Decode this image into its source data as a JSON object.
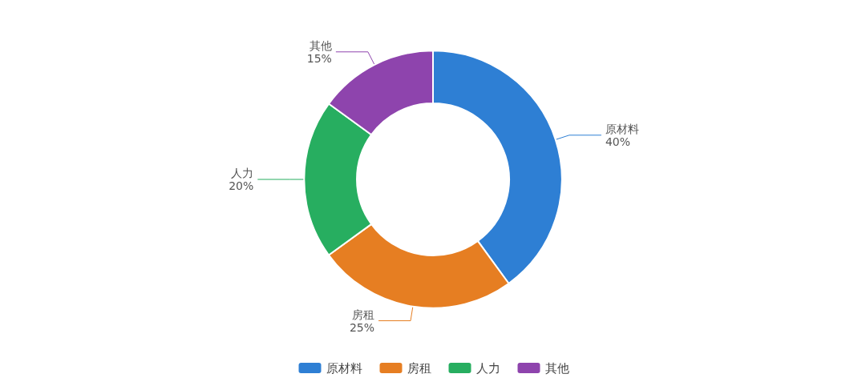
{
  "chart_data": {
    "type": "donut",
    "categories": [
      "原材料",
      "房租",
      "人力",
      "其他"
    ],
    "values": [
      40,
      25,
      20,
      15
    ],
    "colors": [
      "#2e7fd4",
      "#e67e22",
      "#27ae60",
      "#8e44ad"
    ],
    "value_labels": [
      "40%",
      "25%",
      "20%",
      "15%"
    ],
    "legend": "bottom"
  }
}
